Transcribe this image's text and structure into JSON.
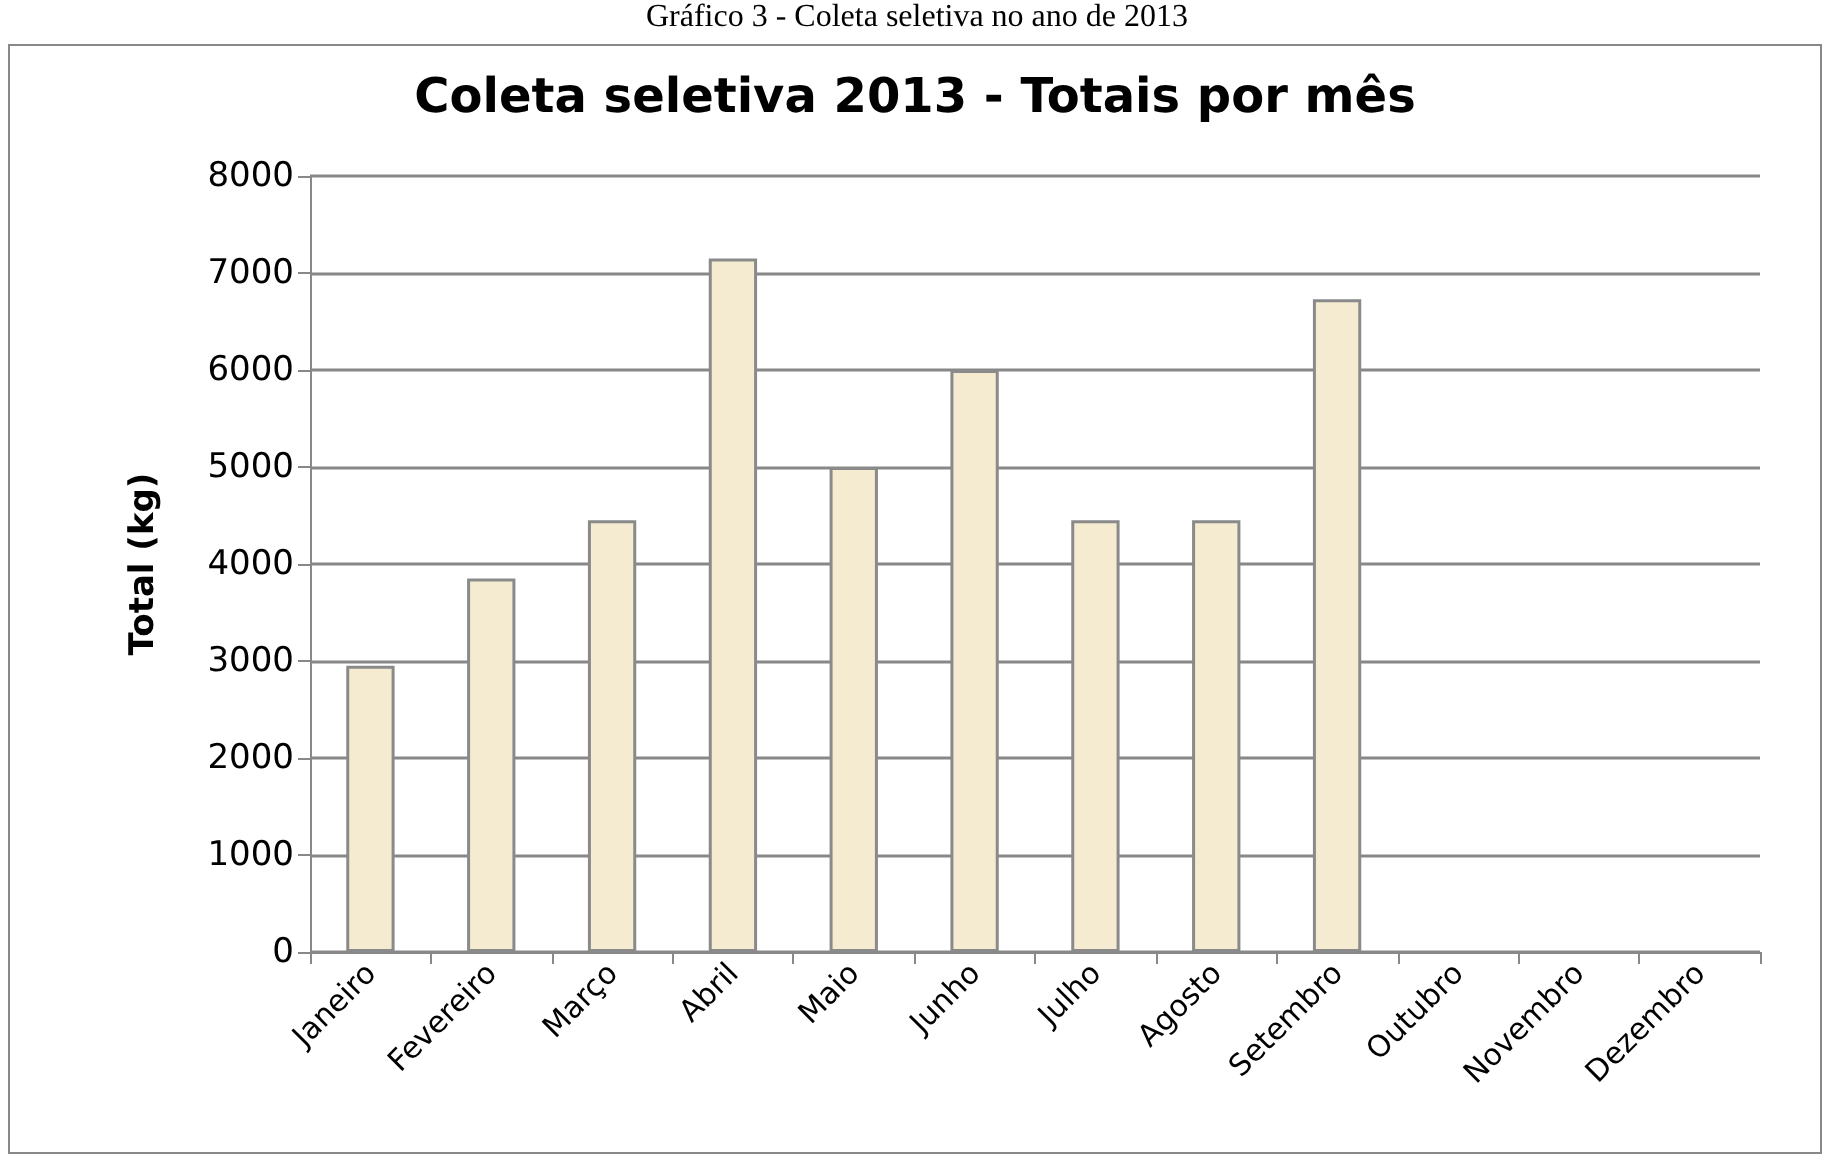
{
  "chart_data": {
    "type": "bar",
    "title": "Coleta seletiva 2013 - Totais por mês",
    "ylabel": "Total (kg)",
    "annotations": [
      "Gráfico 3 - Coleta seletiva no ano de 2013"
    ],
    "categories": [
      "Janeiro",
      "Fevereiro",
      "Março",
      "Abril",
      "Maio",
      "Junho",
      "Julho",
      "Agosto",
      "Setembro",
      "Outubro",
      "Novembro",
      "Dezembro"
    ],
    "values": [
      2950,
      3850,
      4450,
      7150,
      5000,
      6000,
      4450,
      4450,
      6730,
      null,
      null,
      null
    ],
    "color": "#f5ebd0",
    "ylim": [
      0,
      8000
    ],
    "yticks": [
      0,
      1000,
      2000,
      3000,
      4000,
      5000,
      6000,
      7000,
      8000
    ],
    "grid": "y"
  }
}
